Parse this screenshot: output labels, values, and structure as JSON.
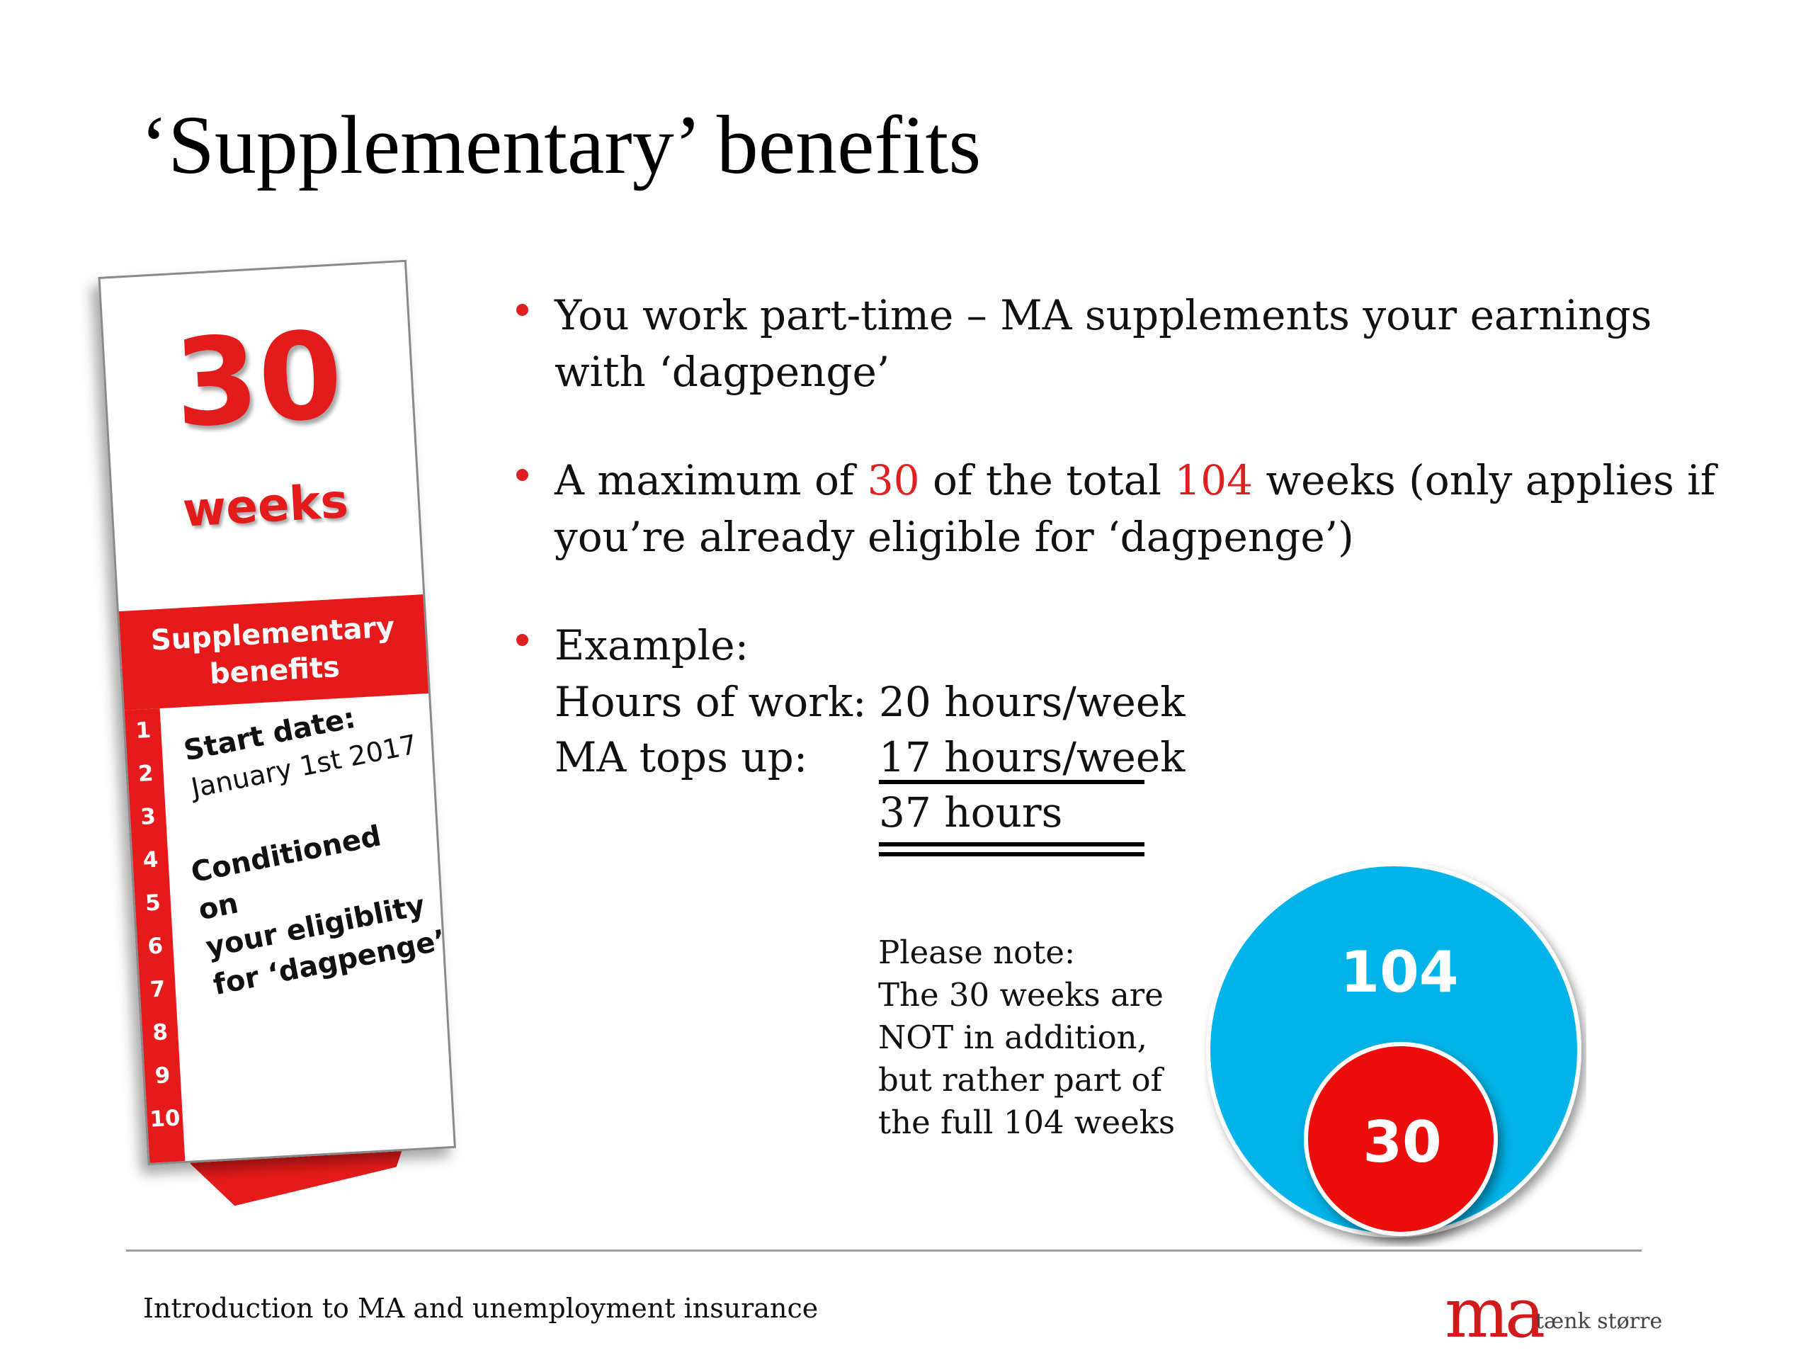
{
  "slide": {
    "title": "‘Supplementary’ benefits"
  },
  "card": {
    "number": "30",
    "unit": "weeks",
    "band_line1": "Supplementary",
    "band_line2": "benefits",
    "side_numbers": [
      "1",
      "2",
      "3",
      "4",
      "5",
      "6",
      "7",
      "8",
      "9",
      "10"
    ],
    "start_label": "Start date:",
    "start_value": "January 1st 2017",
    "condition_line1": "Conditioned on",
    "condition_line2": "your eligiblity",
    "condition_line3": "for ‘dagpenge’",
    "colors": {
      "red": "#e61a1a"
    }
  },
  "bullets": {
    "b1_line1": "You work part-time – MA supplements your earnings",
    "b1_line2": "with ‘dagpenge’",
    "b2_pre": "A maximum of ",
    "b2_num1": "30",
    "b2_mid": " of the total ",
    "b2_num2": "104",
    "b2_post": " weeks (only applies if",
    "b2_line2": "you’re already eligible for ‘dagpenge’)",
    "b3_heading": "Example:",
    "example": {
      "row1_label": "Hours of work:",
      "row1_value": "20 hours/week",
      "row2_label": "MA tops up:",
      "row2_value": "17  hours/week",
      "total_value": "37 hours"
    }
  },
  "note": {
    "line1": "Please note:",
    "line2": "The 30 weeks are",
    "line3": "NOT in addition,",
    "line4": "but rather part of",
    "line5": "the full 104 weeks"
  },
  "circles": {
    "outer_label": "104",
    "inner_label": "30",
    "outer_value": 104,
    "inner_value": 30,
    "outer_color": "#00b3e8",
    "inner_color": "#ee0e0e"
  },
  "footer": {
    "text": "Introduction to MA and unemployment insurance",
    "logo_mark": "ma",
    "logo_tagline": "tænk større"
  }
}
